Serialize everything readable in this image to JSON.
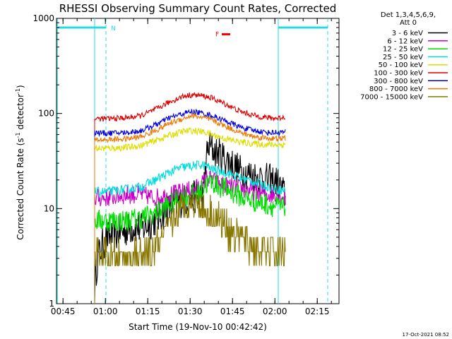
{
  "chart_data": {
    "type": "line",
    "title": "RHESSI Observing Summary Count Rates, Corrected",
    "xlabel": "Start Time (19-Nov-10 00:42:42)",
    "ylabel": "Corrected Count Rate (s-1 detector-1)",
    "y_scale": "log",
    "xlim": [
      0,
      100
    ],
    "ylim": [
      1,
      1000
    ],
    "x_ticks": [
      {
        "t": 2.3,
        "label": "00:45"
      },
      {
        "t": 17.3,
        "label": "01:00"
      },
      {
        "t": 32.3,
        "label": "01:15"
      },
      {
        "t": 47.3,
        "label": "01:30"
      },
      {
        "t": 62.3,
        "label": "01:45"
      },
      {
        "t": 77.3,
        "label": "02:00"
      },
      {
        "t": 92.3,
        "label": "02:15"
      }
    ],
    "y_ticks": [
      {
        "v": 1,
        "label": "1"
      },
      {
        "v": 10,
        "label": "10"
      },
      {
        "v": 100,
        "label": "100"
      },
      {
        "v": 1000,
        "label": "1000"
      }
    ],
    "legend_header": [
      "Det 1,3,4,5,6,9,",
      "Att 0"
    ],
    "series": [
      {
        "name": "3 - 6 keV",
        "color": "#000000",
        "x": [
          13.5,
          14.5,
          16,
          18,
          20,
          22,
          25,
          28,
          30,
          33,
          36,
          40,
          44,
          48,
          52,
          53,
          54,
          56,
          59,
          62,
          65,
          70,
          75,
          78,
          79,
          80,
          81
        ],
        "y": [
          1.5,
          3,
          4,
          5,
          5,
          5.5,
          6,
          6.5,
          6,
          7,
          8,
          10,
          12,
          13,
          14,
          35,
          45,
          40,
          35,
          30,
          25,
          22,
          20,
          19,
          17,
          15,
          14
        ],
        "noise": 0.18
      },
      {
        "name": "6 - 12 keV",
        "color": "#cc00cc",
        "x": [
          13.5,
          18,
          25,
          30,
          35,
          40,
          45,
          48,
          51,
          53,
          55,
          58,
          62,
          66,
          70,
          75,
          78,
          81
        ],
        "y": [
          13,
          13,
          14,
          14,
          13,
          14,
          15,
          16,
          17,
          21,
          20,
          18,
          17,
          16,
          15,
          14,
          14,
          13
        ],
        "noise": 0.1
      },
      {
        "name": "12 - 25 keV",
        "color": "#00dd00",
        "x": [
          13.5,
          18,
          25,
          30,
          35,
          40,
          44,
          48,
          51,
          53,
          55,
          58,
          62,
          66,
          70,
          75,
          78,
          81
        ],
        "y": [
          7.5,
          7.5,
          7.5,
          8,
          9,
          11,
          13,
          14,
          15,
          18,
          19,
          17,
          15,
          13,
          12,
          11,
          10.5,
          10
        ],
        "noise": 0.12
      },
      {
        "name": "25 - 50 keV",
        "color": "#00dddd",
        "x": [
          13.5,
          18,
          25,
          30,
          35,
          40,
          44,
          48,
          51,
          53,
          55,
          60,
          65,
          70,
          75,
          78,
          81
        ],
        "y": [
          15,
          15,
          16,
          17,
          20,
          24,
          27,
          28,
          29,
          28,
          26,
          24,
          21,
          19,
          17,
          16,
          15.5
        ],
        "noise": 0.05
      },
      {
        "name": "50 - 100 keV",
        "color": "#dddd00",
        "x": [
          13.5,
          18,
          25,
          30,
          35,
          40,
          45,
          48,
          52,
          55,
          60,
          65,
          70,
          75,
          78,
          81
        ],
        "y": [
          43,
          43,
          44,
          46,
          52,
          59,
          65,
          66,
          64,
          60,
          54,
          50,
          48,
          47,
          47,
          47
        ],
        "noise": 0.035
      },
      {
        "name": "100 - 300 keV",
        "color": "#dd0000",
        "x": [
          13.5,
          18,
          25,
          30,
          35,
          40,
          45,
          48,
          52,
          55,
          60,
          65,
          70,
          75,
          78,
          81
        ],
        "y": [
          88,
          88,
          90,
          95,
          110,
          132,
          152,
          157,
          153,
          145,
          125,
          105,
          95,
          90,
          89,
          92
        ],
        "noise": 0.03
      },
      {
        "name": "300 - 800 keV",
        "color": "#0000dd",
        "x": [
          13.5,
          18,
          25,
          30,
          35,
          40,
          45,
          48,
          52,
          55,
          60,
          65,
          70,
          75,
          78,
          81
        ],
        "y": [
          63,
          62,
          63,
          66,
          76,
          90,
          100,
          105,
          100,
          95,
          83,
          72,
          66,
          63,
          63,
          64
        ],
        "noise": 0.03
      },
      {
        "name": "800 - 7000 keV",
        "color": "#ee7700",
        "x": [
          13.5,
          18,
          25,
          30,
          35,
          40,
          45,
          48,
          52,
          55,
          60,
          65,
          70,
          75,
          78,
          81
        ],
        "y": [
          53,
          53,
          54,
          57,
          66,
          79,
          89,
          95,
          90,
          85,
          73,
          63,
          57,
          55,
          54,
          55
        ],
        "noise": 0.03
      },
      {
        "name": "7000 - 15000 keV",
        "color": "#887700",
        "x": [
          13.5,
          14.5,
          18,
          22,
          26,
          30,
          34,
          38,
          42,
          46,
          48,
          50,
          52,
          55,
          58,
          61,
          64,
          67,
          70,
          74,
          78,
          81
        ],
        "y": [
          3,
          3.5,
          3,
          3,
          3,
          3,
          3.5,
          5,
          8,
          11,
          12,
          11.5,
          10,
          9,
          7.5,
          6,
          5,
          4.5,
          4,
          3.5,
          3.5,
          3.5
        ],
        "noise": 0.18,
        "quantized": true
      }
    ],
    "annotations": {
      "night_start_label": "N",
      "flare_label": "F",
      "saa_bar_before": {
        "t0": 0,
        "t1": 17.5
      },
      "saa_bar_after": {
        "t0": 78.5,
        "t1": 96
      },
      "night_dashed_lines": [
        17.5,
        96
      ],
      "data_solid_lines": [
        13.5,
        78.5
      ],
      "flare_mark": {
        "t0": 58.5,
        "t1": 61.5,
        "v": 680
      }
    },
    "timestamp": "17-Oct-2021 08:52"
  }
}
